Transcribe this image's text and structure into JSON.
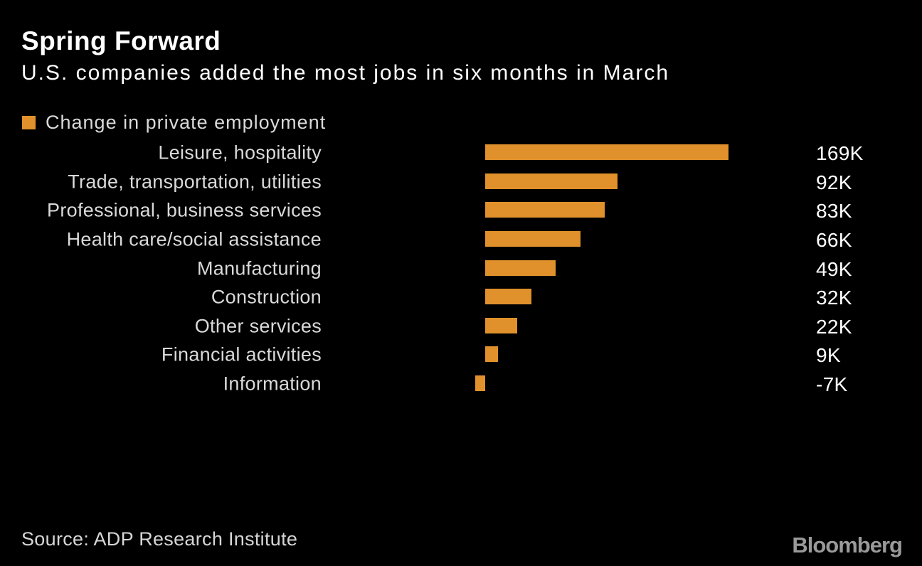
{
  "header": {
    "title": "Spring Forward",
    "subtitle": "U.S. companies added the most jobs in six months in March"
  },
  "legend": {
    "label": "Change in private employment",
    "swatch_color": "#E0912B"
  },
  "chart_data": {
    "type": "bar",
    "orientation": "horizontal",
    "title": "Spring Forward",
    "subtitle": "U.S. companies added the most jobs in six months in March",
    "series_name": "Change in private employment",
    "unit": "thousands of jobs (K)",
    "categories": [
      "Leisure, hospitality",
      "Trade, transportation, utilities",
      "Professional, business services",
      "Health care/social assistance",
      "Manufacturing",
      "Construction",
      "Other services",
      "Financial activities",
      "Information"
    ],
    "values": [
      169,
      92,
      83,
      66,
      49,
      32,
      22,
      9,
      -7
    ],
    "value_labels": [
      "169K",
      "92K",
      "83K",
      "66K",
      "49K",
      "32K",
      "22K",
      "9K",
      "-7K"
    ],
    "bar_color": "#E0912B",
    "background_color": "#000000",
    "grid": false,
    "axes_hidden": true,
    "legend_position": "top-left",
    "value_labels_position": "right-column"
  },
  "footer": {
    "source": "Source: ADP Research Institute",
    "brand": "Bloomberg"
  },
  "colors": {
    "background": "#000000",
    "title_text": "#FFFFFF",
    "subtitle_text": "#FFFFFF",
    "category_text": "#D9D9D9",
    "value_text": "#FFFFFF",
    "source_text": "#D6D6D6",
    "accent_orange": "#E0912B",
    "brand_gray": "#9A9A9A"
  }
}
